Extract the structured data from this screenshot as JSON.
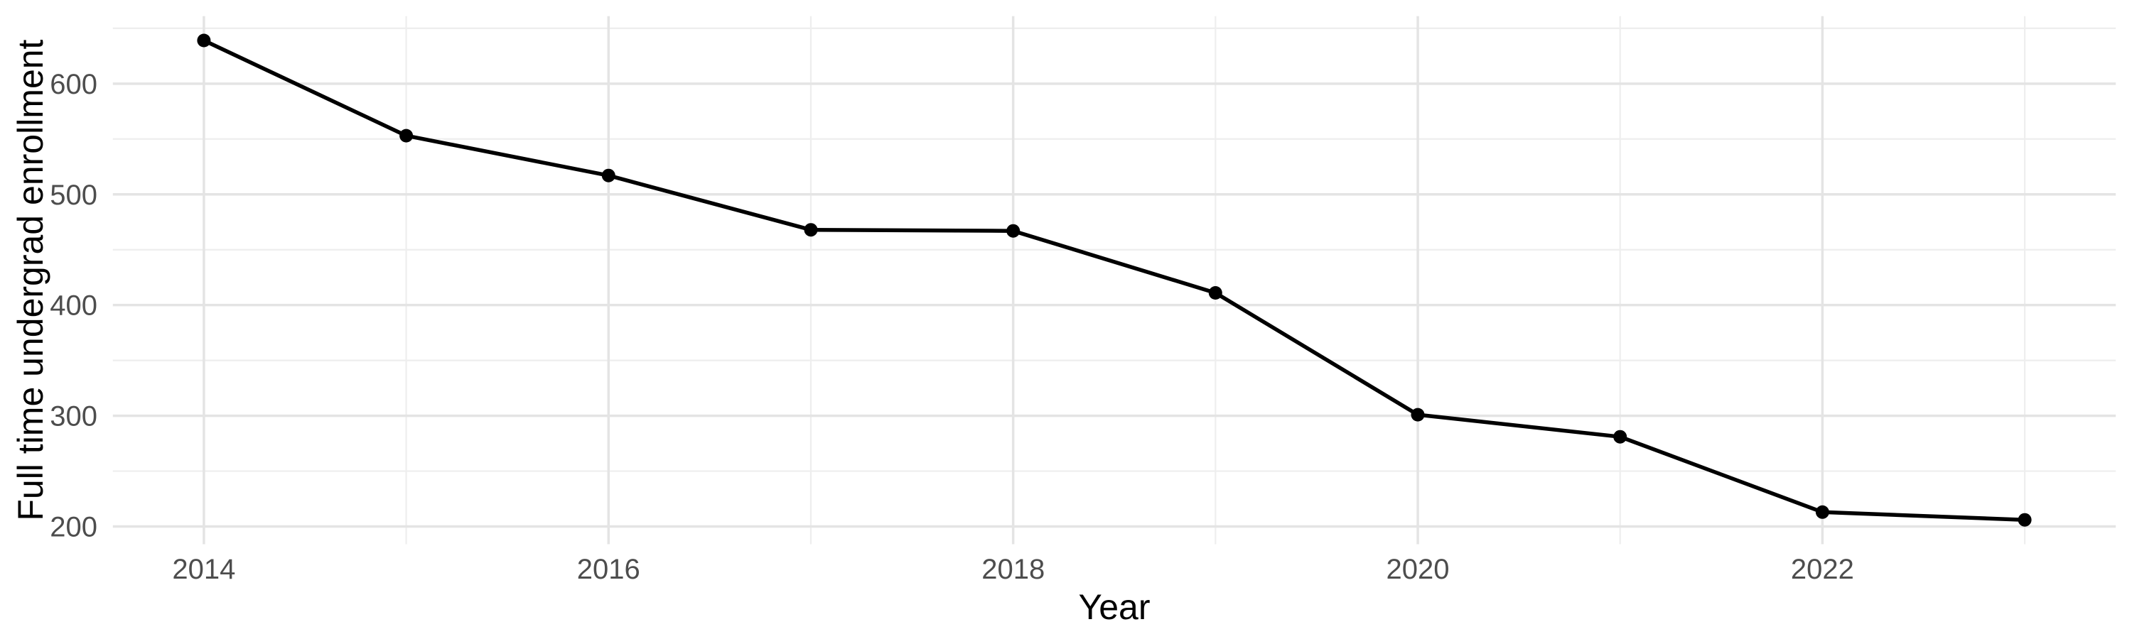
{
  "chart_data": {
    "type": "line",
    "x": [
      2014,
      2015,
      2016,
      2017,
      2018,
      2019,
      2020,
      2021,
      2022,
      2023
    ],
    "series": [
      {
        "name": "Full time undergrad enrollment",
        "values": [
          639,
          553,
          517,
          468,
          467,
          411,
          301,
          281,
          213,
          206
        ]
      }
    ],
    "title": "",
    "xlabel": "Year",
    "ylabel": "Full time undergrad enrollment",
    "xlim": [
      2013.55,
      2023.45
    ],
    "ylim": [
      184,
      661
    ],
    "x_major_ticks": [
      2014,
      2016,
      2018,
      2020,
      2022
    ],
    "x_major_tick_labels": [
      "2014",
      "2016",
      "2018",
      "2020",
      "2022"
    ],
    "x_minor_ticks": [
      2015,
      2017,
      2019,
      2021,
      2023
    ],
    "y_major_ticks": [
      200,
      300,
      400,
      500,
      600
    ],
    "y_major_tick_labels": [
      "200",
      "300",
      "400",
      "500",
      "600"
    ],
    "y_minor_ticks": [
      250,
      350,
      450,
      550,
      650
    ],
    "grid": "on",
    "legend_position": "none",
    "marker": "filled-circle",
    "colors": {
      "line": "#000000",
      "point": "#000000",
      "grid_major": "#e4e4e4",
      "grid_minor": "#eeeeee",
      "tick_text": "#4d4d4d",
      "axis_title_text": "#000000",
      "background": "#ffffff"
    }
  }
}
